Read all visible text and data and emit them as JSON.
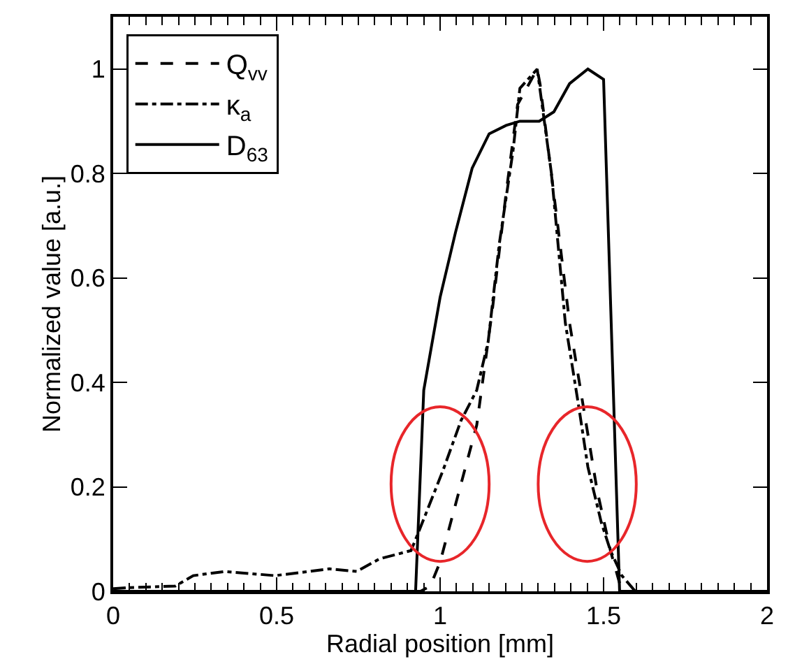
{
  "chart_data": {
    "type": "line",
    "xlabel": "Radial position [mm]",
    "ylabel": "Normalized value [a.u.]",
    "xlim": [
      0,
      2
    ],
    "ylim": [
      0,
      1.1
    ],
    "xticks": [
      0,
      0.5,
      1,
      1.5,
      2,
      {
        "value": 0.05,
        "label": null
      },
      {
        "value": 0.1,
        "label": null
      },
      {
        "value": 0.15,
        "label": null
      },
      {
        "value": 0.2,
        "label": null
      },
      {
        "value": 0.25,
        "label": null
      },
      {
        "value": 0.3,
        "label": null
      },
      {
        "value": 0.35,
        "label": null
      },
      {
        "value": 0.4,
        "label": null
      },
      {
        "value": 0.45,
        "label": null
      },
      {
        "value": 0.55,
        "label": null
      },
      {
        "value": 0.6,
        "label": null
      },
      {
        "value": 0.65,
        "label": null
      },
      {
        "value": 0.7,
        "label": null
      },
      {
        "value": 0.75,
        "label": null
      },
      {
        "value": 0.8,
        "label": null
      },
      {
        "value": 0.85,
        "label": null
      },
      {
        "value": 0.9,
        "label": null
      },
      {
        "value": 0.95,
        "label": null
      },
      {
        "value": 1.05,
        "label": null
      },
      {
        "value": 1.1,
        "label": null
      },
      {
        "value": 1.15,
        "label": null
      },
      {
        "value": 1.2,
        "label": null
      },
      {
        "value": 1.25,
        "label": null
      },
      {
        "value": 1.3,
        "label": null
      },
      {
        "value": 1.35,
        "label": null
      },
      {
        "value": 1.4,
        "label": null
      },
      {
        "value": 1.45,
        "label": null
      },
      {
        "value": 1.55,
        "label": null
      },
      {
        "value": 1.6,
        "label": null
      },
      {
        "value": 1.65,
        "label": null
      },
      {
        "value": 1.7,
        "label": null
      },
      {
        "value": 1.75,
        "label": null
      },
      {
        "value": 1.8,
        "label": null
      },
      {
        "value": 1.85,
        "label": null
      },
      {
        "value": 1.9,
        "label": null
      },
      {
        "value": 1.95,
        "label": null
      }
    ],
    "yticks": [
      0,
      0.2,
      0.4,
      0.6,
      0.8,
      1
    ],
    "grid": false,
    "legend": "top left",
    "marker": "none",
    "series": [
      {
        "name": "Q$_{vv}$",
        "color": "#000000",
        "line_style": "dashed",
        "x": [
          0,
          0.94,
          0.97,
          1.0,
          1.112,
          1.16,
          1.202,
          1.237,
          1.297,
          1.306,
          1.36,
          1.396,
          1.438,
          1.48,
          1.521,
          1.556,
          2
        ],
        "values": [
          0,
          0,
          0.01,
          0.056,
          0.318,
          0.54,
          0.763,
          0.932,
          1.0,
          0.97,
          0.7,
          0.514,
          0.354,
          0.194,
          0.078,
          0,
          0
        ]
      },
      {
        "name": "κ$_{a}$",
        "color": "#000000",
        "line_style": "dashdot",
        "x": [
          0,
          0.05,
          0.19,
          0.245,
          0.342,
          0.495,
          0.661,
          0.745,
          0.814,
          0.911,
          0.932,
          1.008,
          1.064,
          1.112,
          1.147,
          1.181,
          1.223,
          1.244,
          1.297,
          1.341,
          1.383,
          1.424,
          1.452,
          1.493,
          1.521,
          1.556,
          1.597,
          2
        ],
        "values": [
          0.005,
          0.007,
          0.01,
          0.03,
          0.038,
          0.03,
          0.043,
          0.038,
          0.062,
          0.078,
          0.11,
          0.23,
          0.327,
          0.385,
          0.478,
          0.665,
          0.843,
          0.963,
          1.0,
          0.798,
          0.514,
          0.354,
          0.238,
          0.132,
          0.078,
          0.03,
          0,
          0
        ]
      },
      {
        "name": "D$_{63}$",
        "color": "#000000",
        "line_style": "solid",
        "x": [
          0,
          0.925,
          0.95,
          1.0,
          1.047,
          1.098,
          1.15,
          1.202,
          1.244,
          1.303,
          1.348,
          1.396,
          1.452,
          1.5,
          1.549,
          2
        ],
        "values": [
          0,
          0,
          0.385,
          0.563,
          0.687,
          0.81,
          0.876,
          0.892,
          0.9,
          0.9,
          0.918,
          0.972,
          1.0,
          0.98,
          0,
          0
        ]
      }
    ]
  }
}
